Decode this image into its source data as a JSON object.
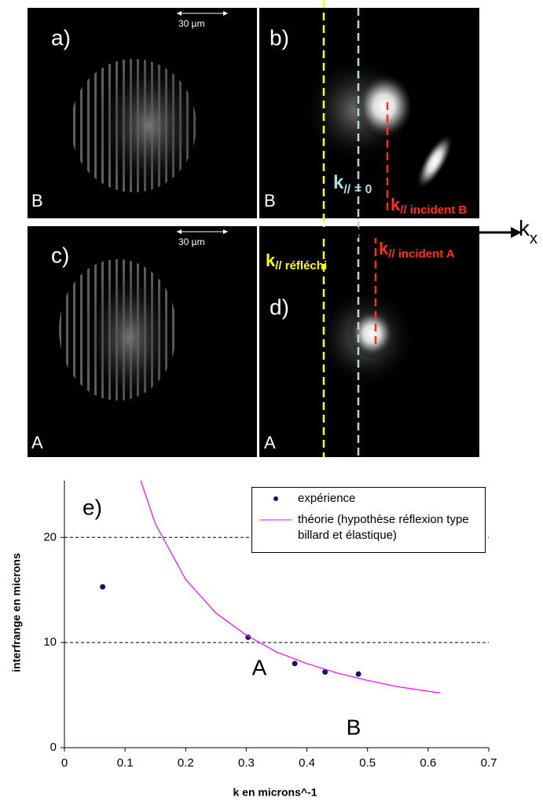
{
  "panels": {
    "labels": [
      "a)",
      "b)",
      "c)",
      "d)"
    ],
    "corners": [
      "B",
      "B",
      "A",
      "A"
    ],
    "scale_bars": [
      "30 µm",
      "30 µm"
    ],
    "kx": {
      "k": "k",
      "sub": "x"
    },
    "k_zero": {
      "k": "k",
      "sub": "// = 0"
    },
    "k_incident_b": {
      "k": "k",
      "sub": "// incident B"
    },
    "k_incident_a": {
      "k": "k",
      "sub": "// incident A"
    },
    "k_reflechi": {
      "k": "k",
      "sub": "// réfléchi"
    }
  },
  "chart_data": {
    "type": "scatter",
    "title": "e)",
    "xlabel": "k en microns^-1",
    "ylabel": "interfrange en microns",
    "xlim": [
      0,
      0.7
    ],
    "xticks": [
      0,
      0.1,
      0.2,
      0.3,
      0.4,
      0.5,
      0.6,
      0.7
    ],
    "ylim": [
      0,
      25.4
    ],
    "yticks": [
      0,
      10,
      20
    ],
    "grid": true,
    "annotations": [
      "A",
      "B"
    ],
    "series": [
      {
        "name": "expérience",
        "mode": "markers",
        "color": "#14146b",
        "x": [
          0.063,
          0.303,
          0.38,
          0.43,
          0.485
        ],
        "values": [
          15.3,
          10.5,
          8.0,
          7.2,
          7.0
        ]
      },
      {
        "name": "théorie (hypothèse réflexion type billard et élastique)",
        "mode": "line",
        "color": "#ff00ff",
        "x": [
          0.126,
          0.15,
          0.2,
          0.25,
          0.3,
          0.35,
          0.4,
          0.45,
          0.5,
          0.55,
          0.62
        ],
        "values": [
          25.4,
          21.3,
          16.0,
          12.8,
          10.7,
          9.1,
          8.0,
          7.1,
          6.4,
          5.8,
          5.2
        ]
      }
    ]
  }
}
